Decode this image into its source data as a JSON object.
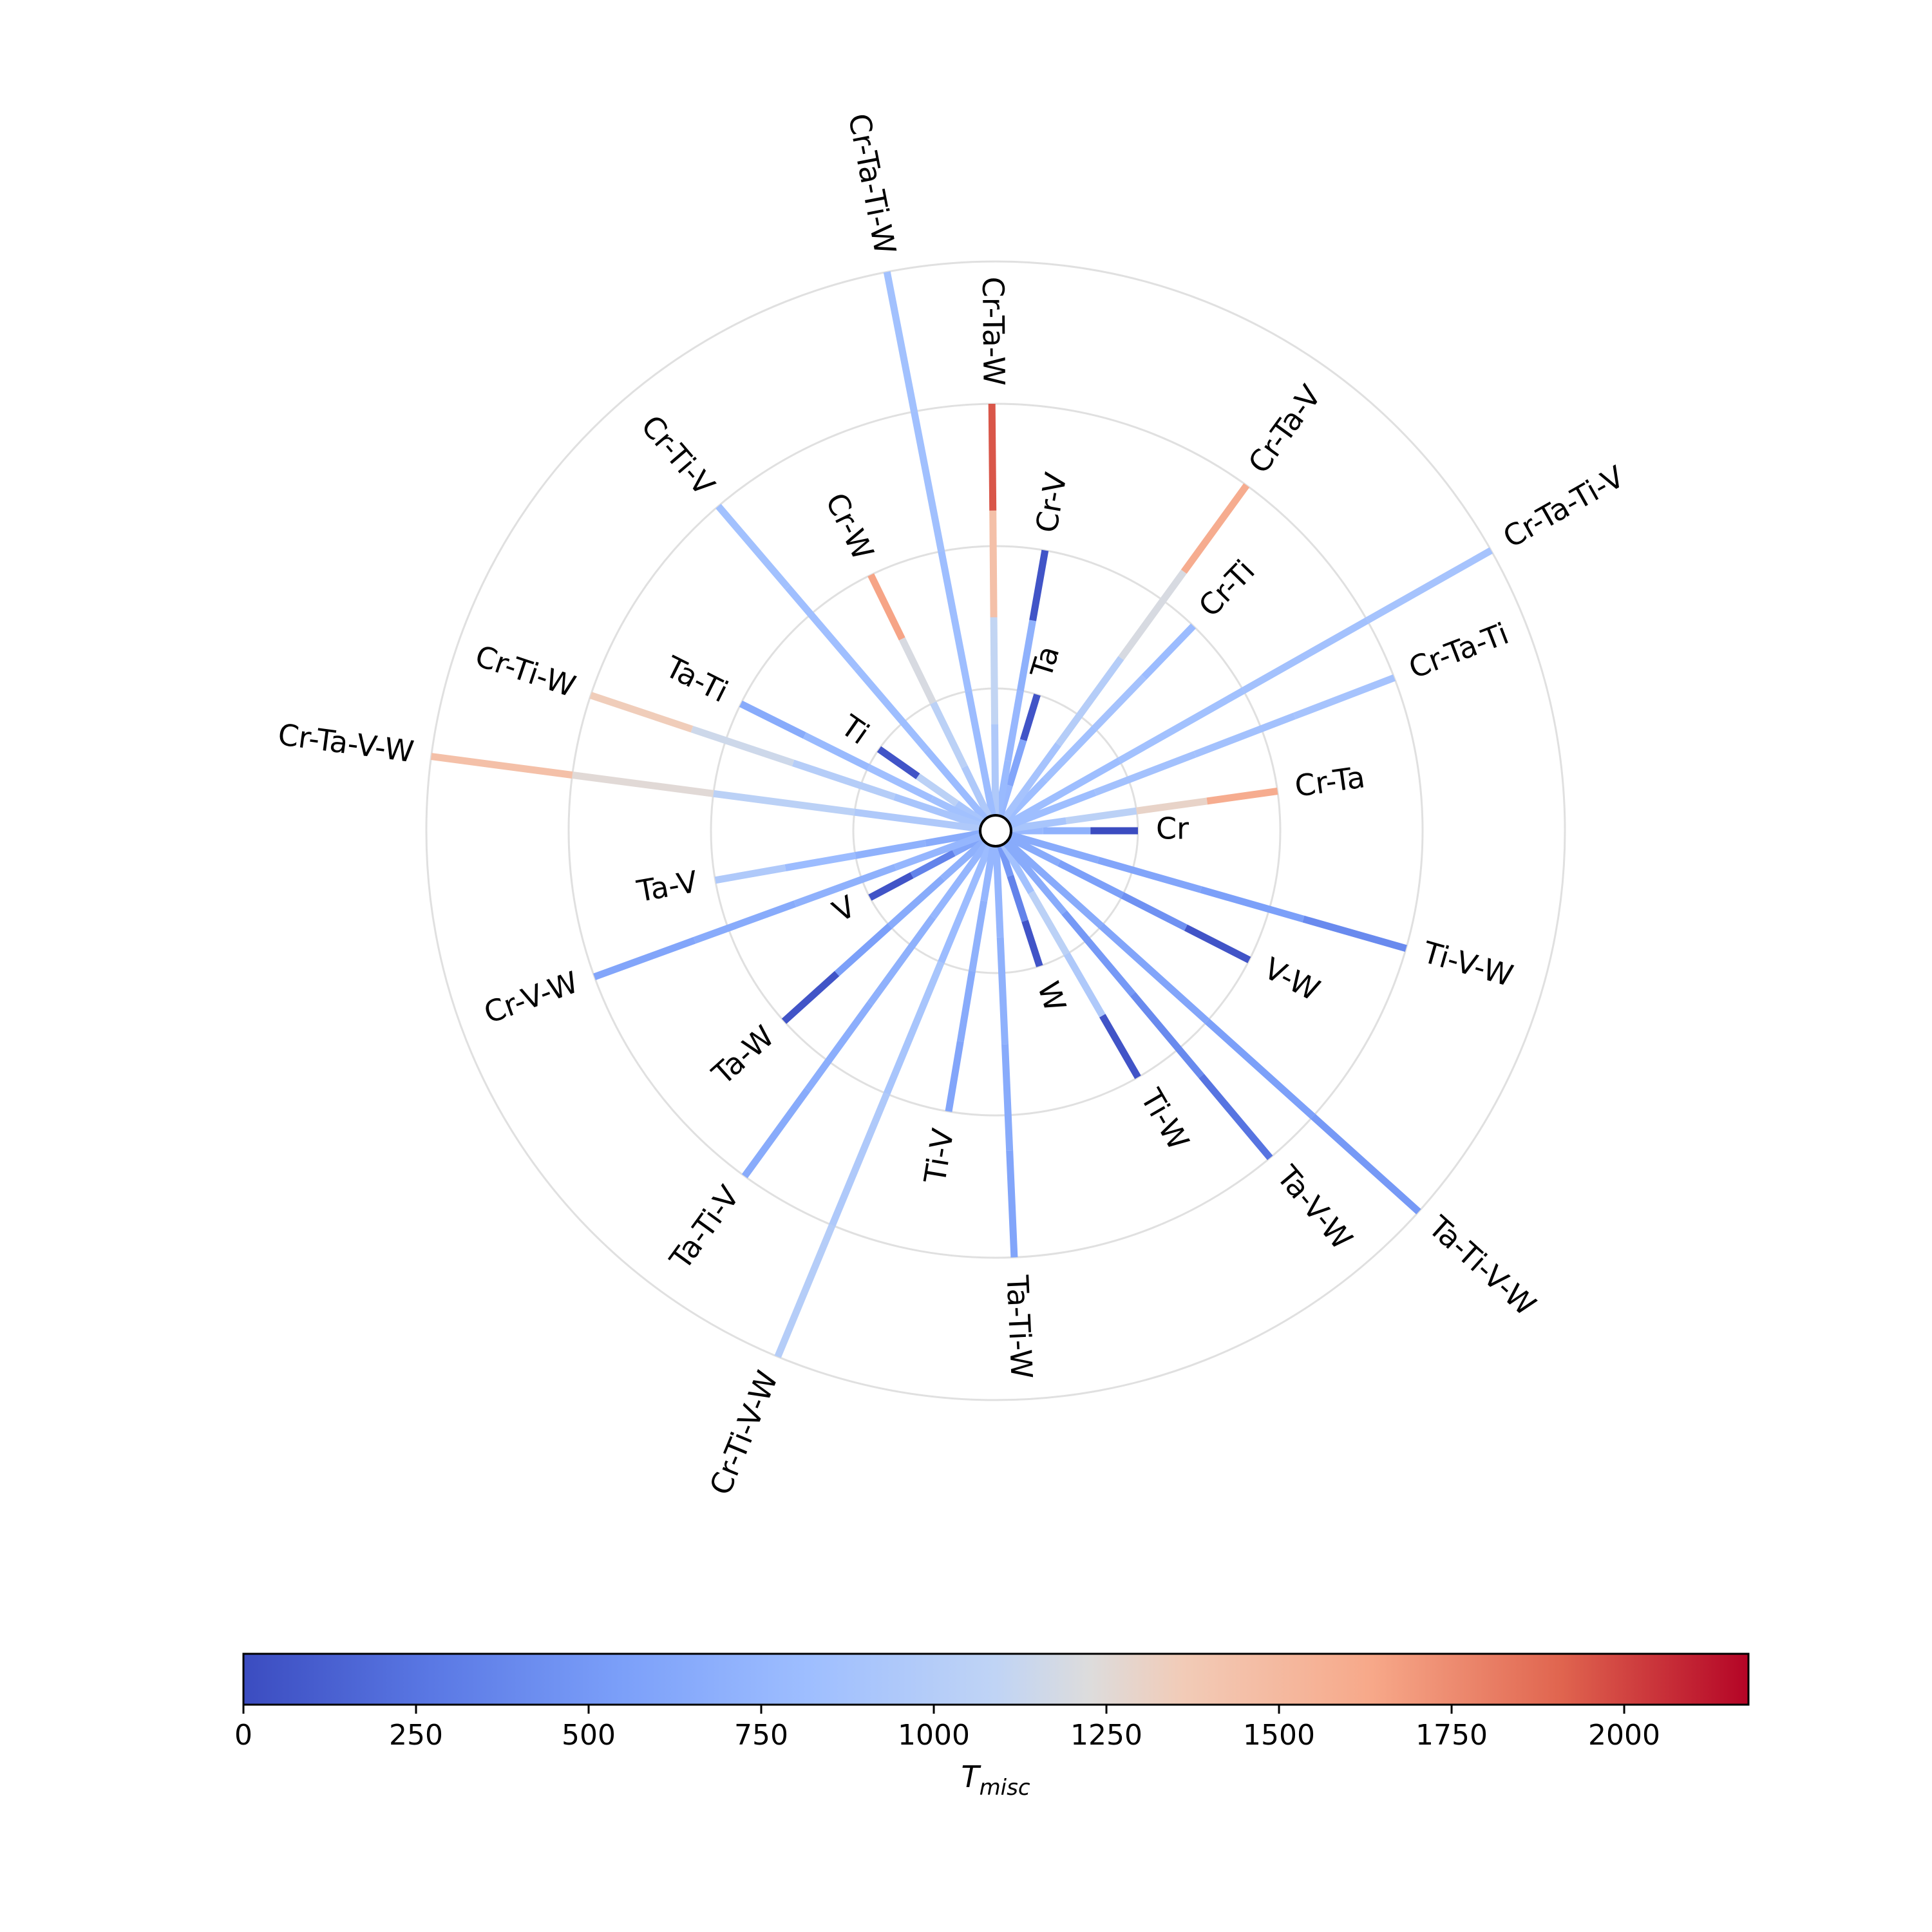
{
  "chart_data": {
    "type": "radial-line",
    "rings": 4,
    "spokes": [
      {
        "label": "Cr",
        "angle": 0,
        "level": 1,
        "colors": [
          760,
          700,
          0
        ]
      },
      {
        "label": "Cr-Ta",
        "angle": 8,
        "level": 2,
        "colors": [
          900,
          1050,
          1300,
          1600
        ]
      },
      {
        "label": "Cr-Ta-Ti",
        "angle": 21,
        "level": 3,
        "colors": [
          820,
          860,
          860,
          880
        ]
      },
      {
        "label": "Cr-Ta-Ti-V",
        "angle": 29.5,
        "level": 4,
        "colors": [
          820,
          850,
          860,
          880
        ]
      },
      {
        "label": "Cr-Ti",
        "angle": 46,
        "level": 2,
        "colors": [
          820,
          850,
          870,
          800
        ]
      },
      {
        "label": "Cr-Ta-V",
        "angle": 54,
        "level": 3,
        "colors": [
          880,
          1000,
          1200,
          1600
        ]
      },
      {
        "label": "Ta",
        "angle": 73,
        "level": 1,
        "colors": [
          760,
          600,
          50
        ]
      },
      {
        "label": "Cr-V",
        "angle": 80,
        "level": 2,
        "colors": [
          780,
          760,
          700,
          50
        ]
      },
      {
        "label": "Cr-Ta-W",
        "angle": 90.5,
        "level": 3,
        "colors": [
          950,
          1100,
          1450,
          1950
        ]
      },
      {
        "label": "Cr-Ta-Ti-W",
        "angle": 101,
        "level": 4,
        "colors": [
          800,
          820,
          840,
          850
        ]
      },
      {
        "label": "Cr-W",
        "angle": 116,
        "level": 2,
        "colors": [
          950,
          1050,
          1200,
          1650
        ]
      },
      {
        "label": "Cr-Ti-V",
        "angle": 130.5,
        "level": 3,
        "colors": [
          800,
          820,
          830,
          850
        ]
      },
      {
        "label": "Ti",
        "angle": 145,
        "level": 1,
        "colors": [
          900,
          1050,
          50
        ]
      },
      {
        "label": "Ta-Ti",
        "angle": 153.5,
        "level": 2,
        "colors": [
          850,
          830,
          780,
          650
        ]
      },
      {
        "label": "Cr-Ti-W",
        "angle": 161.5,
        "level": 3,
        "colors": [
          900,
          1000,
          1150,
          1350
        ]
      },
      {
        "label": "Cr-Ta-V-W",
        "angle": 172.5,
        "level": 4,
        "colors": [
          950,
          1050,
          1250,
          1450
        ]
      },
      {
        "label": "Ta-V",
        "angle": 190,
        "level": 2,
        "colors": [
          650,
          700,
          800,
          950
        ]
      },
      {
        "label": "V",
        "angle": 208,
        "level": 1,
        "colors": [
          600,
          350,
          50
        ]
      },
      {
        "label": "Cr-V-W",
        "angle": 200,
        "level": 3,
        "colors": [
          750,
          700,
          650,
          600
        ]
      },
      {
        "label": "Ta-W",
        "angle": 222,
        "level": 2,
        "colors": [
          700,
          650,
          550,
          50
        ]
      },
      {
        "label": "Ta-Ti-V",
        "angle": 234,
        "level": 3,
        "colors": [
          750,
          700,
          680,
          650
        ]
      },
      {
        "label": "Cr-Ti-V-W",
        "angle": 247.5,
        "level": 4,
        "colors": [
          800,
          900,
          950,
          1000
        ]
      },
      {
        "label": "Ti-V",
        "angle": 260.5,
        "level": 2,
        "colors": [
          750,
          700,
          650,
          600
        ]
      },
      {
        "label": "Ta-Ti-W",
        "angle": 272.5,
        "level": 3,
        "colors": [
          750,
          700,
          650,
          600
        ]
      },
      {
        "label": "W",
        "angle": 288,
        "level": 1,
        "colors": [
          500,
          350,
          50
        ]
      },
      {
        "label": "Ti-W",
        "angle": 300,
        "level": 2,
        "colors": [
          850,
          1050,
          950,
          50
        ]
      },
      {
        "label": "Ta-V-W",
        "angle": 310,
        "level": 3,
        "colors": [
          650,
          500,
          400,
          250
        ]
      },
      {
        "label": "Ta-Ti-V-W",
        "angle": 318,
        "level": 4,
        "colors": [
          650,
          600,
          550,
          500
        ]
      },
      {
        "label": "V-W",
        "angle": 333,
        "level": 2,
        "colors": [
          650,
          550,
          450,
          50
        ]
      },
      {
        "label": "Ti-V-W",
        "angle": 344,
        "level": 3,
        "colors": [
          650,
          600,
          550,
          400
        ]
      }
    ],
    "colorbar": {
      "label_base": "T",
      "label_sub": "misc",
      "min": 0,
      "max": 2180,
      "ticks": [
        0,
        250,
        500,
        750,
        1000,
        1250,
        1500,
        1750,
        2000
      ],
      "tick_labels": [
        "0",
        "250",
        "500",
        "750",
        "1000",
        "1250",
        "1500",
        "1750",
        "2000"
      ],
      "colormap": "coolwarm"
    }
  }
}
